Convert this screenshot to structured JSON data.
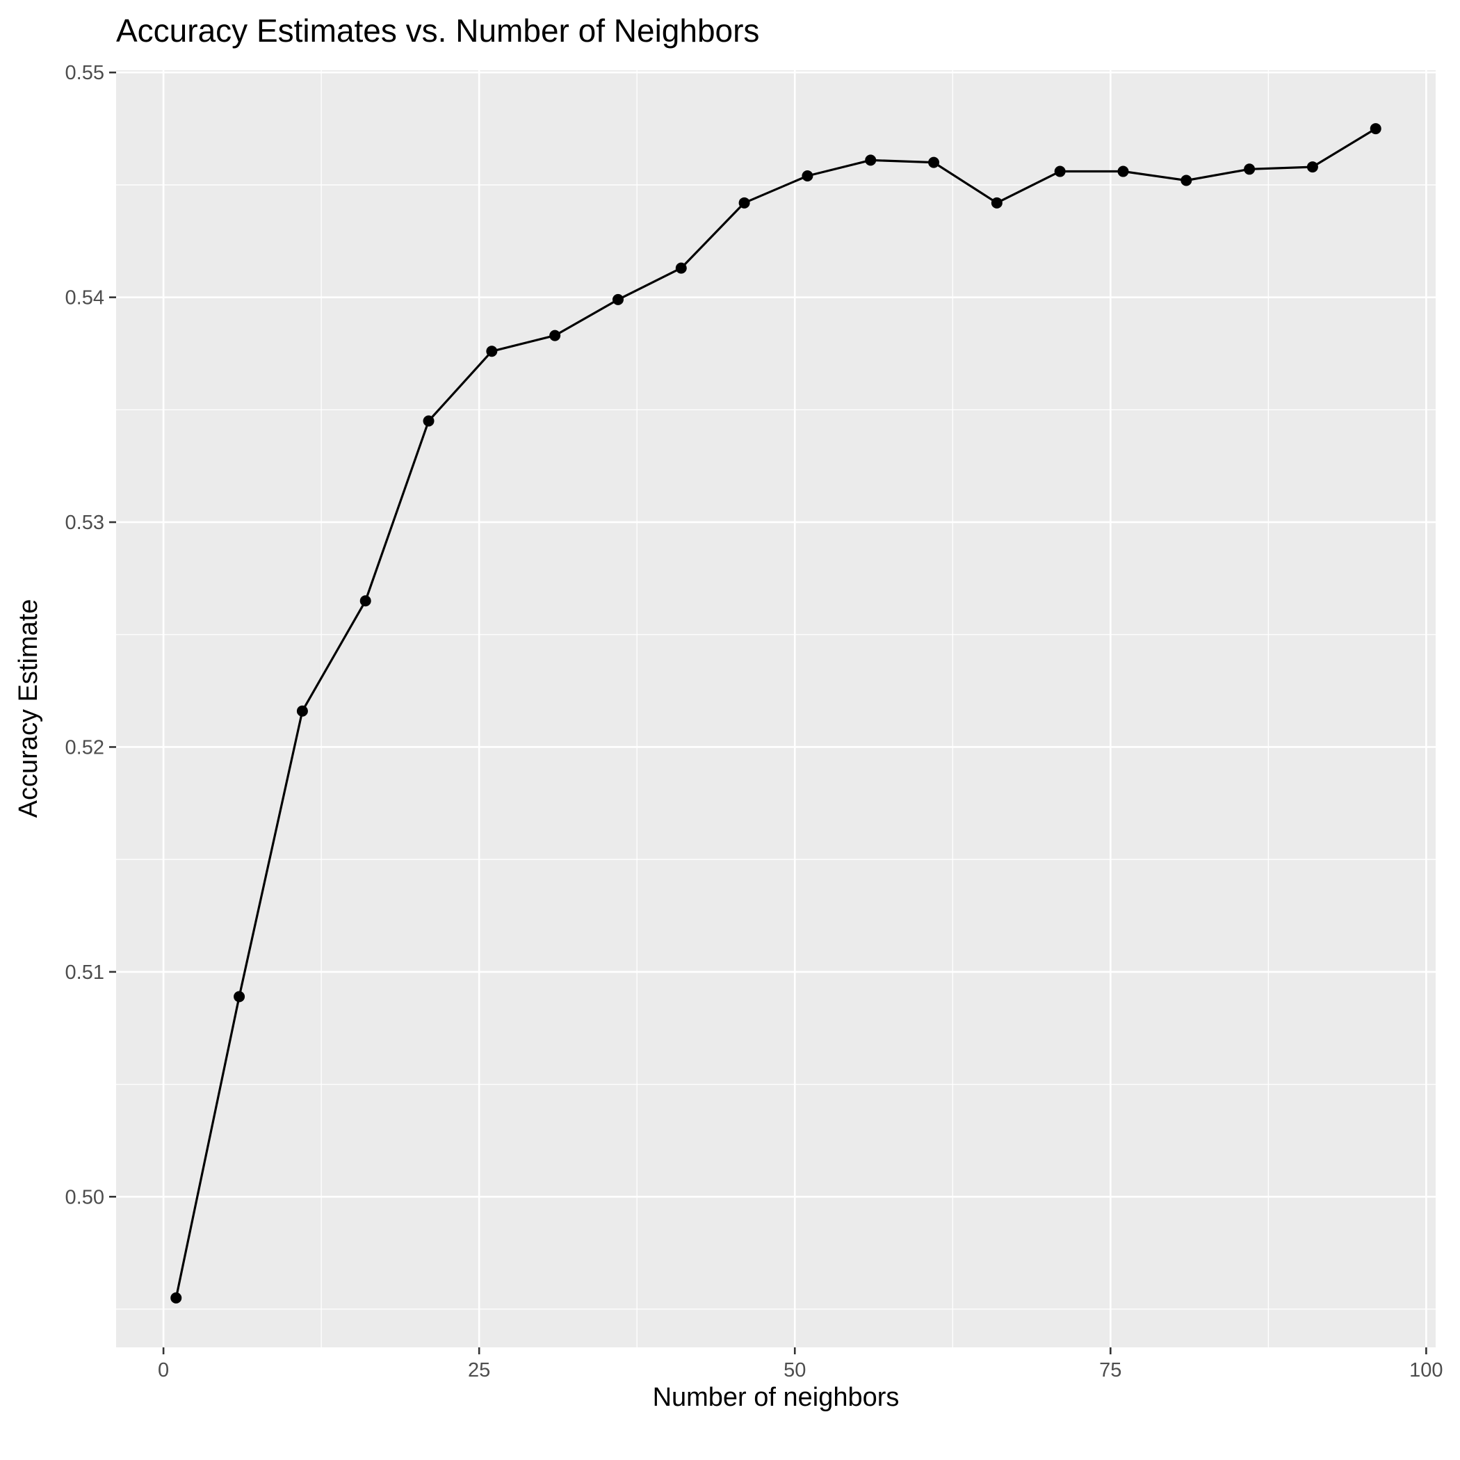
{
  "chart_data": {
    "type": "line",
    "title": "Accuracy Estimates vs. Number of Neighbors",
    "xlabel": "Number of neighbors",
    "ylabel": "Accuracy Estimate",
    "xlim": [
      -3.75,
      100.75
    ],
    "ylim": [
      0.4933,
      0.5501
    ],
    "x_ticks": [
      0,
      25,
      50,
      75,
      100
    ],
    "x_tick_labels": [
      "0",
      "25",
      "50",
      "75",
      "100"
    ],
    "x_minor_ticks": [
      12.5,
      37.5,
      62.5,
      87.5
    ],
    "y_ticks": [
      0.5,
      0.51,
      0.52,
      0.53,
      0.54,
      0.55
    ],
    "y_tick_labels": [
      "0.50",
      "0.51",
      "0.52",
      "0.53",
      "0.54",
      "0.55"
    ],
    "y_minor_ticks": [
      0.495,
      0.505,
      0.515,
      0.525,
      0.535,
      0.545
    ],
    "grid": true,
    "legend": "none",
    "colors": {
      "series": "#000000",
      "panel": "#ebebeb",
      "grid": "#ffffff"
    },
    "series": [
      {
        "x": [
          1,
          6,
          11,
          16,
          21,
          26,
          31,
          36,
          41,
          46,
          51,
          56,
          61,
          66,
          71,
          76,
          81,
          86,
          91,
          96
        ],
        "y": [
          0.4955,
          0.5089,
          0.5216,
          0.5265,
          0.5345,
          0.5376,
          0.5383,
          0.5399,
          0.5413,
          0.5442,
          0.5454,
          0.5461,
          0.546,
          0.5442,
          0.5456,
          0.5456,
          0.5452,
          0.5457,
          0.5458,
          0.5475
        ]
      }
    ]
  }
}
